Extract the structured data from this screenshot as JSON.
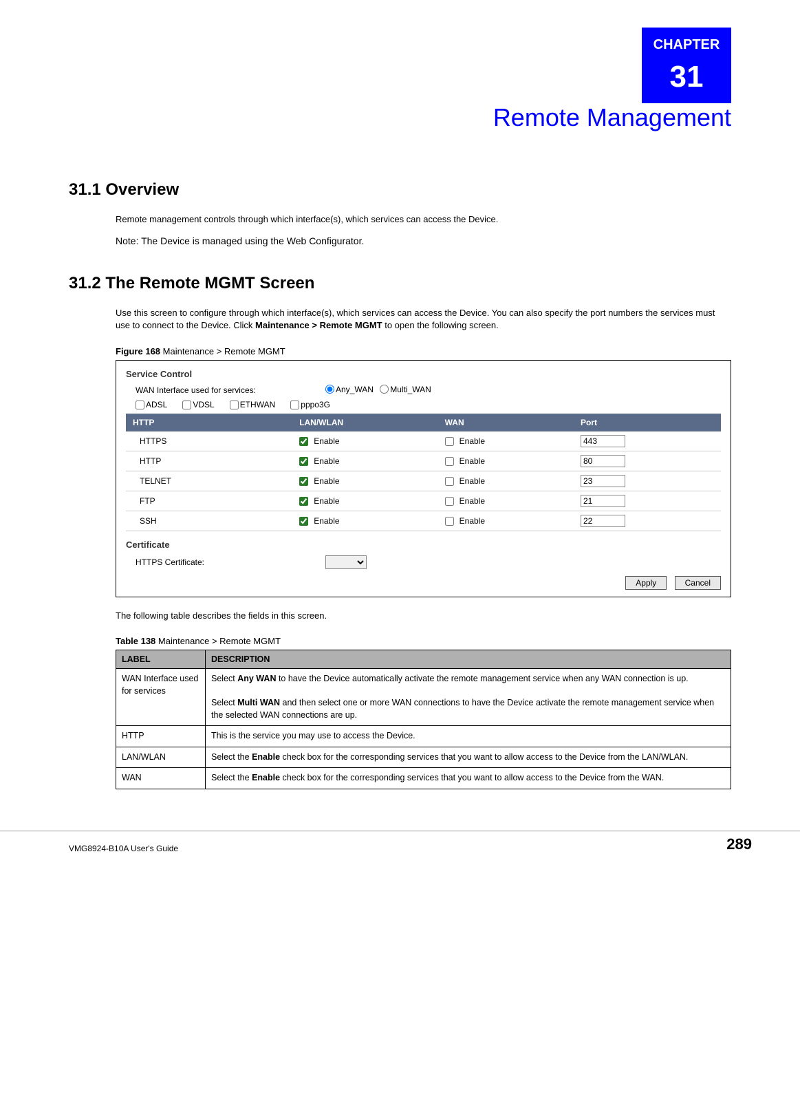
{
  "chapter": {
    "number": "31",
    "label": "CHAPTER",
    "title": "Remote Management"
  },
  "sections": {
    "overview": {
      "heading": "31.1  Overview",
      "para": "Remote management controls through which interface(s), which services can access the Device.",
      "note": "Note: The Device is managed using the Web Configurator."
    },
    "mgmt": {
      "heading": "31.2  The Remote MGMT Screen",
      "para_before": "Use this screen to configure through which interface(s), which services can access the Device. You can also specify the port numbers the services must use to connect to the Device. Click ",
      "para_bold": "Maintenance > Remote MGMT",
      "para_after": " to open the following screen.",
      "figure_label": "Figure 168",
      "figure_caption": "   Maintenance > Remote MGMT",
      "after_figure": "The following table describes the fields in this screen.",
      "table_label": "Table 138",
      "table_caption": "   Maintenance > Remote MGMT"
    }
  },
  "screenshot": {
    "section1_title": "Service Control",
    "wan_label": "WAN Interface used for services:",
    "radio": {
      "any": "Any_WAN",
      "multi": "Multi_WAN"
    },
    "proto_checks": [
      "ADSL",
      "VDSL",
      "ETHWAN",
      "pppo3G"
    ],
    "columns": {
      "svc": "HTTP",
      "lan": "LAN/WLAN",
      "wan": "WAN",
      "port": "Port"
    },
    "enable_text": "Enable",
    "rows": [
      {
        "svc": "HTTPS",
        "lan_checked": true,
        "wan_checked": false,
        "port": "443"
      },
      {
        "svc": "HTTP",
        "lan_checked": true,
        "wan_checked": false,
        "port": "80"
      },
      {
        "svc": "TELNET",
        "lan_checked": true,
        "wan_checked": false,
        "port": "23"
      },
      {
        "svc": "FTP",
        "lan_checked": true,
        "wan_checked": false,
        "port": "21"
      },
      {
        "svc": "SSH",
        "lan_checked": true,
        "wan_checked": false,
        "port": "22"
      }
    ],
    "section2_title": "Certificate",
    "cert_label": "HTTPS Certificate:",
    "buttons": {
      "apply": "Apply",
      "cancel": "Cancel"
    }
  },
  "desc_table": {
    "header": {
      "label": "LABEL",
      "desc": "DESCRIPTION"
    },
    "rows": [
      {
        "label": "WAN Interface used for services",
        "desc_p1_a": "Select ",
        "desc_p1_b": "Any WAN",
        "desc_p1_c": " to have the Device automatically activate the remote management service when any WAN connection is up.",
        "desc_p2_a": "Select ",
        "desc_p2_b": "Multi WAN",
        "desc_p2_c": " and then select one or more WAN connections to have the Device activate the remote management service when the selected WAN connections are up."
      },
      {
        "label": "HTTP",
        "desc": "This is the service you may use to access the Device."
      },
      {
        "label": "LAN/WLAN",
        "desc_a": "Select the ",
        "desc_b": "Enable",
        "desc_c": " check box for the corresponding services that you want to allow access to the Device from the LAN/WLAN."
      },
      {
        "label": "WAN",
        "desc_a": "Select the ",
        "desc_b": "Enable",
        "desc_c": " check box for the corresponding services that you want to allow access to the Device from the WAN."
      }
    ]
  },
  "footer": {
    "guide": "VMG8924-B10A User's Guide",
    "page": "289"
  },
  "colors": {
    "brand_blue": "#0000ff",
    "th_bg": "#5a6b8a",
    "desc_th_bg": "#b0b0b0"
  }
}
